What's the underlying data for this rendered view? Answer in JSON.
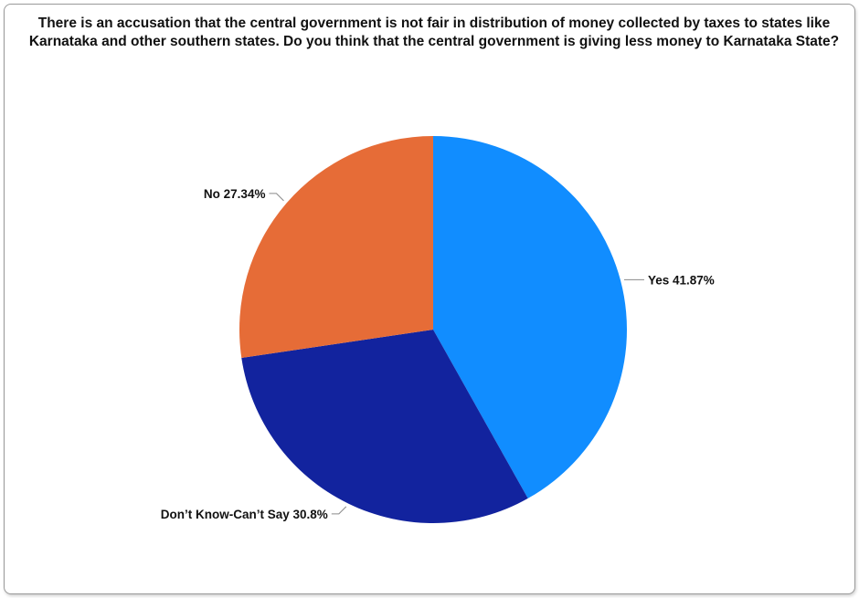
{
  "chart_data": {
    "type": "pie",
    "title": "There is an accusation that the central government is not fair in distribution of money collected by taxes to states like Karnataka and other southern states. Do you think that the central government is giving less money to Karnataka State?",
    "slices": [
      {
        "label": "Yes",
        "value": 41.87,
        "display": "41.87%",
        "color": "#118dff"
      },
      {
        "label": "Don’t Know-Can’t Say",
        "value": 30.8,
        "display": "30.8%",
        "color": "#12239e"
      },
      {
        "label": "No",
        "value": 27.34,
        "display": "27.34%",
        "color": "#e66c37"
      }
    ],
    "legend": "none",
    "label_placement": "outside"
  }
}
